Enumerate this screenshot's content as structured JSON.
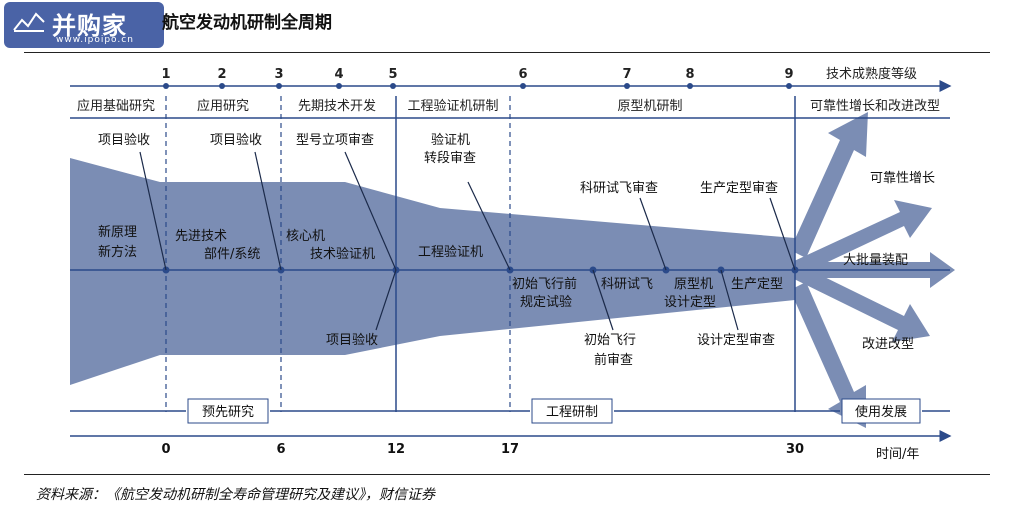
{
  "logo": {
    "name": "并购家",
    "url": "www.ipoipo.cn"
  },
  "title": "航空发动机研制全周期",
  "source": "资料来源：《航空发动机研制全寿命管理研究及建议》，财信证券",
  "trl": {
    "label": "技术成熟度等级",
    "levels": [
      "1",
      "2",
      "3",
      "4",
      "5",
      "6",
      "7",
      "8",
      "9"
    ]
  },
  "phases": [
    "应用基础研究",
    "应用研究",
    "先期技术开发",
    "工程验证机研制",
    "原型机研制",
    "可靠性增长和改进改型"
  ],
  "stages": [
    "预先研究",
    "工程研制",
    "使用发展"
  ],
  "timeline": {
    "ticks": [
      "0",
      "6",
      "12",
      "17",
      "30"
    ],
    "unit": "时间/年"
  },
  "milestones_top": [
    "项目验收",
    "项目验收",
    "型号立项审查",
    "验证机",
    "转段审查",
    "科研试飞审查",
    "生产定型审查"
  ],
  "axis_labels": [
    "新原理",
    "新方法",
    "先进技术",
    "部件/系统",
    "核心机",
    "技术验证机",
    "工程验证机",
    "初始飞行前",
    "规定试验",
    "科研试飞",
    "原型机",
    "设计定型",
    "生产定型",
    "大批量装配"
  ],
  "milestones_bottom": [
    "项目验收",
    "初始飞行",
    "前审查",
    "设计定型审查"
  ],
  "branches": [
    "可靠性增长",
    "改进改型"
  ],
  "colors": {
    "funnel": "#7b8db4",
    "line": "#2b4a8a",
    "text": "#222222"
  }
}
